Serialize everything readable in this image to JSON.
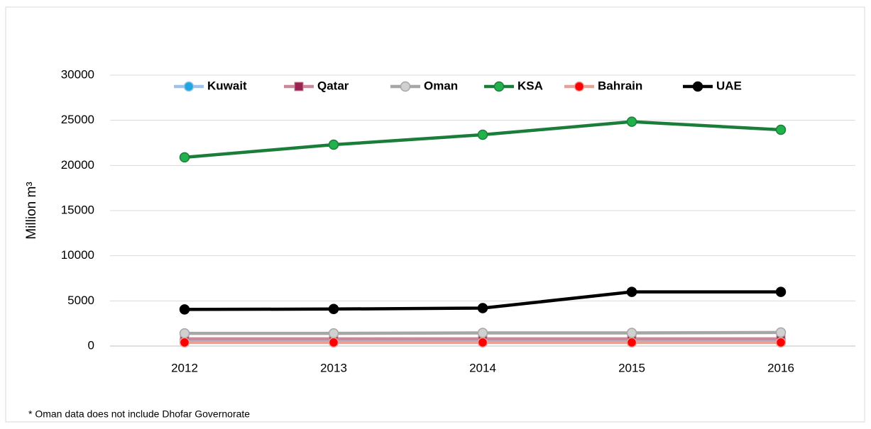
{
  "chart_data": {
    "type": "line",
    "y_label": "Million m³",
    "footnote": "* Oman data does not include Dhofar Governorate",
    "categories": [
      "2012",
      "2013",
      "2014",
      "2015",
      "2016"
    ],
    "series": [
      {
        "name": "Kuwait",
        "color": "#9dc3e6",
        "marker_color": "#1fa6e0",
        "marker": "circle",
        "values": [
          650,
          650,
          650,
          650,
          650
        ]
      },
      {
        "name": "Qatar",
        "color": "#c8899a",
        "marker_color": "#9b2352",
        "marker": "square",
        "values": [
          800,
          800,
          800,
          800,
          800
        ]
      },
      {
        "name": "Oman",
        "color": "#a6a6a6",
        "marker_color": "#d0d0d0",
        "marker": "circle",
        "values": [
          1400,
          1400,
          1450,
          1450,
          1500
        ]
      },
      {
        "name": "KSA",
        "color": "#1b7d3a",
        "marker_color": "#22b14c",
        "marker": "circle",
        "values": [
          20900,
          22300,
          23400,
          24850,
          23950
        ]
      },
      {
        "name": "Bahrain",
        "color": "#e6a096",
        "marker_color": "#ff0000",
        "marker": "circle",
        "values": [
          400,
          400,
          400,
          400,
          400
        ]
      },
      {
        "name": "UAE",
        "color": "#000000",
        "marker_color": "#000000",
        "marker": "circle",
        "values": [
          4050,
          4100,
          4200,
          6000,
          6000
        ]
      }
    ],
    "ylim": [
      0,
      30000
    ],
    "yticks": [
      0,
      5000,
      10000,
      15000,
      20000,
      25000,
      30000
    ],
    "grid": true
  }
}
